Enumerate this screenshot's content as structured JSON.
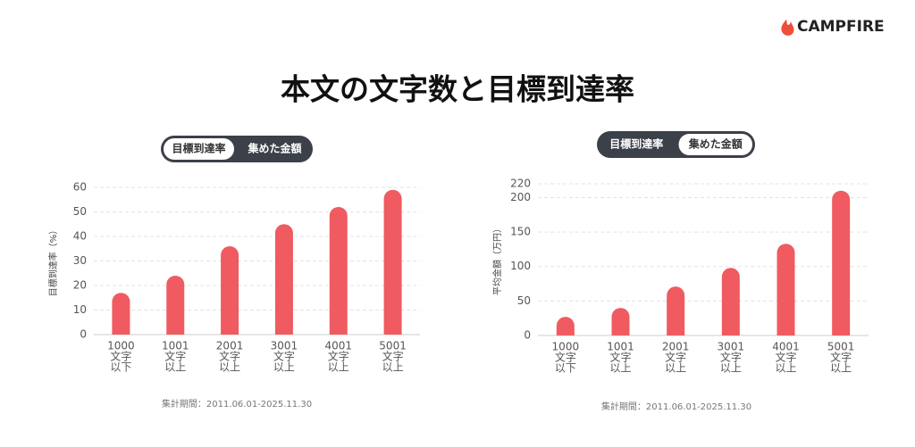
{
  "header": {
    "logo": "CAMPFIRE",
    "title": "本文の文字数と目標到達率"
  },
  "chart_data": [
    {
      "type": "bar",
      "toggle_options": [
        "目標到達率",
        "集めた金額"
      ],
      "active_toggle": 0,
      "y_label": "目標到達率（%）",
      "categories": [
        [
          "1000",
          "文字",
          "以下"
        ],
        [
          "1001",
          "文字",
          "以上"
        ],
        [
          "2001",
          "文字",
          "以上"
        ],
        [
          "3001",
          "文字",
          "以上"
        ],
        [
          "4001",
          "文字",
          "以上"
        ],
        [
          "5001",
          "文字",
          "以上"
        ]
      ],
      "values": [
        17,
        24,
        36,
        45,
        52,
        59
      ],
      "color": "#ef5b60",
      "ylim": [
        0,
        60
      ],
      "yticks": [
        0,
        10,
        20,
        30,
        40,
        50,
        60
      ],
      "grid": true,
      "note": "集計期間：2011.06.01-2025.11.30"
    },
    {
      "type": "bar",
      "toggle_options": [
        "目標到達率",
        "集めた金額"
      ],
      "active_toggle": 1,
      "y_label": "平均金額（万円）",
      "categories": [
        [
          "1000",
          "文字",
          "以下"
        ],
        [
          "1001",
          "文字",
          "以上"
        ],
        [
          "2001",
          "文字",
          "以上"
        ],
        [
          "3001",
          "文字",
          "以上"
        ],
        [
          "4001",
          "文字",
          "以上"
        ],
        [
          "5001",
          "文字",
          "以上"
        ]
      ],
      "values": [
        27,
        40,
        71,
        98,
        133,
        210
      ],
      "color": "#ef5b60",
      "ylim": [
        0,
        220
      ],
      "yticks": [
        0,
        50,
        100,
        150,
        200,
        220
      ],
      "grid": true,
      "note": "集計期間：2011.06.01-2025.11.30"
    }
  ]
}
